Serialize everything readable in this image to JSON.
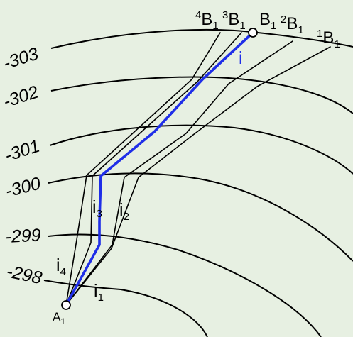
{
  "contours": [
    {
      "label": "-303",
      "name": "contour-303"
    },
    {
      "label": "-302",
      "name": "contour-302"
    },
    {
      "label": "-301",
      "name": "contour-301"
    },
    {
      "label": "-300",
      "name": "contour-300"
    },
    {
      "label": "-299",
      "name": "contour-299"
    },
    {
      "label": "-298",
      "name": "contour-298"
    }
  ],
  "points": {
    "start": {
      "letter": "A",
      "sub": "1"
    },
    "end_main": {
      "letter": "B",
      "sub": "1"
    },
    "end_1": {
      "pre": "1",
      "letter": "B",
      "sub": "1"
    },
    "end_2": {
      "pre": "2",
      "letter": "B",
      "sub": "1"
    },
    "end_3": {
      "pre": "3",
      "letter": "B",
      "sub": "1"
    },
    "end_4": {
      "pre": "4",
      "letter": "B",
      "sub": "1"
    }
  },
  "routes": {
    "main": {
      "label": "i"
    },
    "i1": {
      "letter": "i",
      "sub": "1"
    },
    "i2": {
      "letter": "i",
      "sub": "2"
    },
    "i3": {
      "letter": "i",
      "sub": "3"
    },
    "i4": {
      "letter": "i",
      "sub": "4"
    }
  },
  "colors": {
    "background": "#e7f0e2",
    "main_route": "#1f2ee8",
    "lines": "#000000"
  }
}
